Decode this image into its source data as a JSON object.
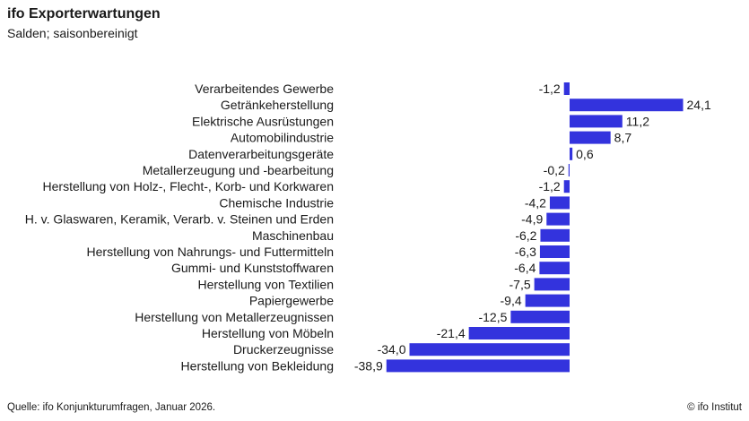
{
  "header": {
    "title": "ifo Exporterwartungen",
    "subtitle": "Salden; saisonbereinigt"
  },
  "footer": {
    "source": "Quelle: ifo Konjunkturumfragen,  Januar 2026.",
    "copyright": "© ifo Institut"
  },
  "colors": {
    "bar": "#3333dd",
    "text": "#1a1a1a"
  },
  "chart_data": {
    "type": "bar",
    "orientation": "horizontal",
    "title": "ifo Exporterwartungen",
    "subtitle": "Salden; saisonbereinigt",
    "categories": [
      "Verarbeitendes Gewerbe",
      "Getränkeherstellung",
      "Elektrische Ausrüstungen",
      "Automobilindustrie",
      "Datenverarbeitungsgeräte",
      "Metallerzeugung und -bearbeitung",
      "Herstellung von Holz-, Flecht-, Korb- und Korkwaren",
      "Chemische Industrie",
      "H. v. Glaswaren, Keramik, Verarb. v. Steinen und Erden",
      "Maschinenbau",
      "Herstellung von Nahrungs- und Futtermitteln",
      "Gummi- und Kunststoffwaren",
      "Herstellung von Textilien",
      "Papiergewerbe",
      "Herstellung von Metallerzeugnissen",
      "Herstellung von Möbeln",
      "Druckerzeugnisse",
      "Herstellung von Bekleidung"
    ],
    "values": [
      -1.2,
      24.1,
      11.2,
      8.7,
      0.6,
      -0.2,
      -1.2,
      -4.2,
      -4.9,
      -6.2,
      -6.3,
      -6.4,
      -7.5,
      -9.4,
      -12.5,
      -21.4,
      -34.0,
      -38.9
    ],
    "value_labels": [
      "-1,2",
      "24,1",
      "11,2",
      "8,7",
      "0,6",
      "-0,2",
      "-1,2",
      "-4,2",
      "-4,9",
      "-6,2",
      "-6,3",
      "-6,4",
      "-7,5",
      "-9,4",
      "-12,5",
      "-21,4",
      "-34,0",
      "-38,9"
    ],
    "xlim": [
      -38.9,
      24.1
    ],
    "xlabel": "",
    "ylabel": "",
    "grid": false,
    "legend": "none"
  }
}
